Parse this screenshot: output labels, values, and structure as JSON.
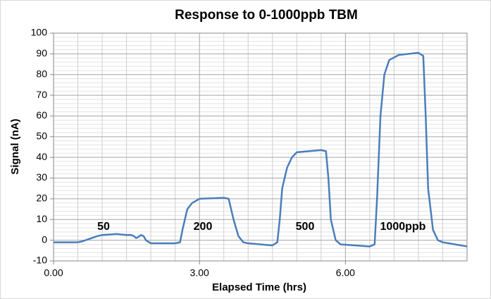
{
  "chart_data": {
    "type": "line",
    "title": "Response to 0-1000ppb TBM",
    "xlabel": "Elapsed Time (hrs)",
    "ylabel": "Signal (nA)",
    "series": [
      {
        "name": "Signal",
        "color": "#4a7ebb",
        "x": [
          0,
          0.5,
          0.6,
          0.9,
          1.0,
          1.3,
          1.5,
          1.6,
          1.65,
          1.7,
          1.8,
          1.85,
          1.9,
          2.0,
          2.5,
          2.6,
          2.65,
          2.75,
          2.85,
          3.0,
          3.5,
          3.6,
          3.7,
          3.8,
          3.9,
          4.0,
          4.5,
          4.6,
          4.65,
          4.7,
          4.8,
          4.9,
          5.0,
          5.5,
          5.6,
          5.65,
          5.7,
          5.8,
          5.9,
          6.5,
          6.6,
          6.65,
          6.72,
          6.8,
          6.9,
          7.1,
          7.5,
          7.6,
          7.65,
          7.7,
          7.8,
          7.9,
          8.0,
          8.5
        ],
        "values": [
          -1,
          -1,
          -0.5,
          2,
          2.5,
          3,
          2.5,
          2.5,
          2,
          1,
          2.5,
          2,
          0,
          -1.5,
          -1.5,
          -1,
          5,
          15,
          18,
          20,
          20.5,
          20,
          10,
          2,
          -1,
          -1.5,
          -2.5,
          -1,
          10,
          25,
          35,
          40,
          42.5,
          43.5,
          43,
          30,
          10,
          0,
          -2,
          -3,
          -2,
          20,
          60,
          80,
          87,
          89.5,
          90.5,
          89,
          60,
          25,
          5,
          0,
          -1,
          -3
        ]
      }
    ],
    "annotations": [
      "50",
      "200",
      "500",
      "1000ppb"
    ],
    "xlim": [
      0,
      8.5
    ],
    "ylim": [
      -10,
      100
    ],
    "xticks": [
      {
        "value": 0,
        "label": "0.00"
      },
      {
        "value": 3,
        "label": "3.00"
      },
      {
        "value": 6,
        "label": "6.00"
      }
    ],
    "yticks": [
      -10,
      0,
      10,
      20,
      30,
      40,
      50,
      60,
      70,
      80,
      90,
      100
    ],
    "xminorticks": [
      0.5,
      1,
      1.5,
      2,
      2.5,
      3.5,
      4,
      4.5,
      5,
      5.5,
      6.5,
      7,
      7.5,
      8
    ],
    "yminorticks": [
      -8,
      -6,
      -4,
      -2,
      2,
      4,
      6,
      8,
      12,
      14,
      16,
      18,
      22,
      24,
      26,
      28,
      32,
      34,
      36,
      38,
      42,
      44,
      46,
      48,
      52,
      54,
      56,
      58,
      62,
      64,
      66,
      68,
      72,
      74,
      76,
      78,
      82,
      84,
      86,
      88,
      92,
      94,
      96,
      98
    ],
    "grid": true
  }
}
